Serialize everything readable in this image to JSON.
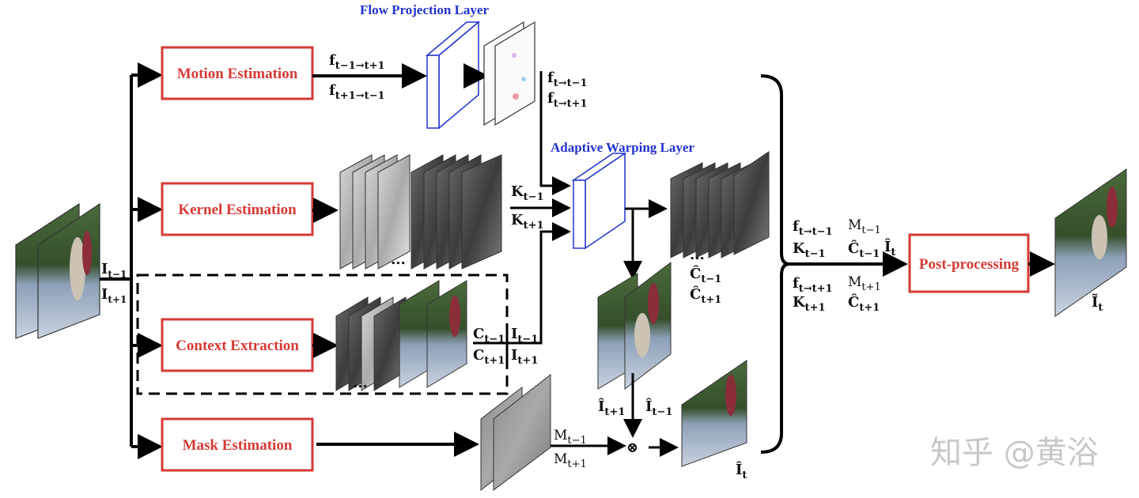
{
  "layers": {
    "flow_projection": "Flow Projection Layer",
    "adaptive_warping": "Adaptive Warping Layer"
  },
  "modules": {
    "motion": "Motion Estimation",
    "kernel": "Kernel  Estimation",
    "context": "Context  Extraction",
    "mask": "Mask Estimation",
    "post": "Post-processing"
  },
  "labels": {
    "input": [
      "I",
      "t−1",
      "I",
      "t+1"
    ],
    "motion_out": [
      "f",
      "t−1→t+1",
      "f",
      "t+1→t−1"
    ],
    "projected_flow": [
      "f",
      "t→t−1",
      "f",
      "t→t+1"
    ],
    "kernels": [
      "K",
      "t−1",
      "K",
      "t+1"
    ],
    "contexts": [
      "C",
      "t−1",
      "C",
      "t+1"
    ],
    "context_inputs": [
      "I",
      "t−1",
      "I",
      "t+1"
    ],
    "masks": [
      "M",
      "t−1",
      "M",
      "t+1"
    ],
    "warped_contexts": [
      "Ĉ",
      "t−1",
      "Ĉ",
      "t+1"
    ],
    "warped_frames": [
      "Î",
      "t+1",
      "Î",
      "t−1"
    ],
    "blended": [
      "Î",
      "t"
    ],
    "output": [
      "Ĩ",
      "t"
    ],
    "ellipsis": "...",
    "blend_operator": "⊗",
    "post_inputs_top": [
      "f",
      "t→t−1",
      "M",
      "t−1",
      "K",
      "t−1",
      "Ĉ",
      "t−1",
      "Î",
      "t"
    ],
    "post_inputs_bottom": [
      "f",
      "t→t+1",
      "M",
      "t+1",
      "K",
      "t+1",
      "Ĉ",
      "t+1"
    ]
  },
  "watermark": "知乎 @黄浴",
  "colors": {
    "module_red": "#d63a35",
    "layer_blue": "#2233cc",
    "frame_sky": "#7d90a8",
    "frame_grass": "#3f5a34",
    "frame_figure": "#8c2d3a"
  }
}
